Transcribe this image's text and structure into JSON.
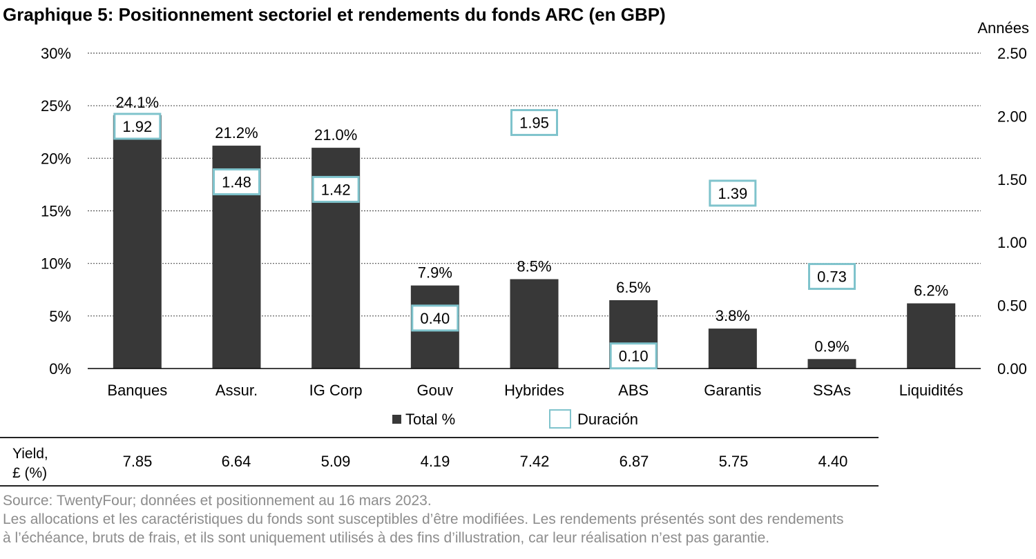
{
  "title": "Graphique 5: Positionnement sectoriel et rendements du fonds ARC (en GBP)",
  "colors": {
    "bar": "#383838",
    "duration_border": "#7fc3cc",
    "grid": "#555555",
    "source_text": "#8c8c8c"
  },
  "chart_data": {
    "type": "bar",
    "categories": [
      "Banques",
      "Assur.",
      "IG Corp",
      "Gouv",
      "Hybrides",
      "ABS",
      "Garantis",
      "SSAs",
      "Liquidités"
    ],
    "series": [
      {
        "name": "Total %",
        "axis": "left",
        "values": [
          24.1,
          21.2,
          21.0,
          7.9,
          8.5,
          6.5,
          3.8,
          0.9,
          6.2
        ],
        "labels": [
          "24.1%",
          "21.2%",
          "21.0%",
          "7.9%",
          "8.5%",
          "6.5%",
          "3.8%",
          "0.9%",
          "6.2%"
        ]
      },
      {
        "name": "Duración",
        "axis": "right",
        "marker": "box",
        "values": [
          1.92,
          1.48,
          1.42,
          0.4,
          1.95,
          0.1,
          1.39,
          0.73,
          null
        ],
        "labels": [
          "1.92",
          "1.48",
          "1.42",
          "0.40",
          "1.95",
          "0.10",
          "1.39",
          "0.73",
          ""
        ]
      }
    ],
    "y_left": {
      "range": [
        0,
        30
      ],
      "ticks": [
        "0%",
        "5%",
        "10%",
        "15%",
        "20%",
        "25%",
        "30%"
      ]
    },
    "y_right": {
      "label": "Années",
      "range": [
        0,
        2.5
      ],
      "ticks": [
        "0.00",
        "0.50",
        "1.00",
        "1.50",
        "2.00",
        "2.50"
      ]
    },
    "grid": "dotted horizontal",
    "legend_position": "bottom"
  },
  "yield_table": {
    "label_line1": "Yield,",
    "label_line2": "£ (%)",
    "values": [
      "7.85",
      "6.64",
      "5.09",
      "4.19",
      "7.42",
      "6.87",
      "5.75",
      "4.40"
    ]
  },
  "notes": {
    "source": "Source: TwentyFour; données et positionnement au 16 mars 2023.",
    "line1": "Les allocations et les caractéristiques du fonds sont susceptibles d’être modifiées. Les rendements présentés sont des rendements",
    "line2": "à l’échéance, bruts de frais, et ils sont uniquement utilisés à des fins d’illustration, car leur réalisation n’est pas garantie."
  }
}
